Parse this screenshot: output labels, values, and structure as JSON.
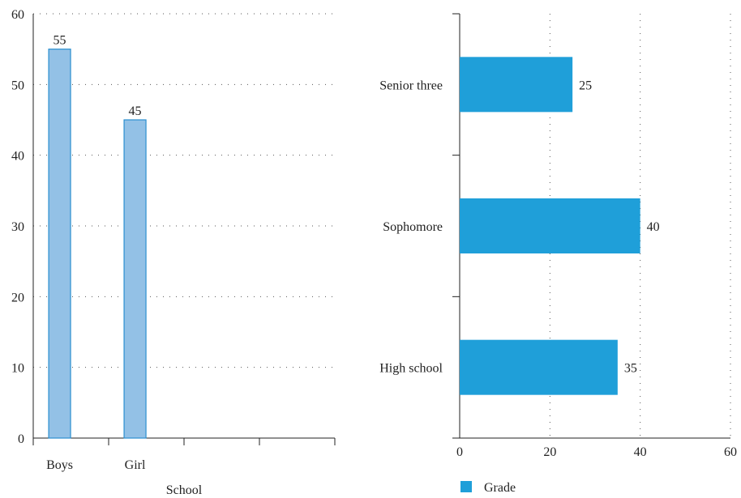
{
  "chart_data": [
    {
      "type": "bar",
      "orientation": "vertical",
      "categories": [
        "Boys",
        "Girl"
      ],
      "values": [
        55,
        45
      ],
      "data_labels": [
        "55",
        "45"
      ],
      "xlabel": "School",
      "ylim": [
        0,
        60
      ],
      "yticks": [
        "0",
        "10",
        "20",
        "30",
        "40",
        "50",
        "60"
      ],
      "grid": true,
      "bar_color": "#93c1e6",
      "bar_edge_color": "#2b8fd0"
    },
    {
      "type": "bar",
      "orientation": "horizontal",
      "categories": [
        "Senior three",
        "Sophomore",
        "High school"
      ],
      "values": [
        25,
        40,
        35
      ],
      "data_labels": [
        "25",
        "40",
        "35"
      ],
      "series": [
        {
          "name": "Grade",
          "values": [
            25,
            40,
            35
          ]
        }
      ],
      "xlim": [
        0,
        60
      ],
      "xticks": [
        "0",
        "20",
        "40",
        "60"
      ],
      "grid": true,
      "legend": {
        "label": "Grade",
        "position": "bottom-left"
      },
      "bar_color": "#1f9fd9"
    }
  ]
}
